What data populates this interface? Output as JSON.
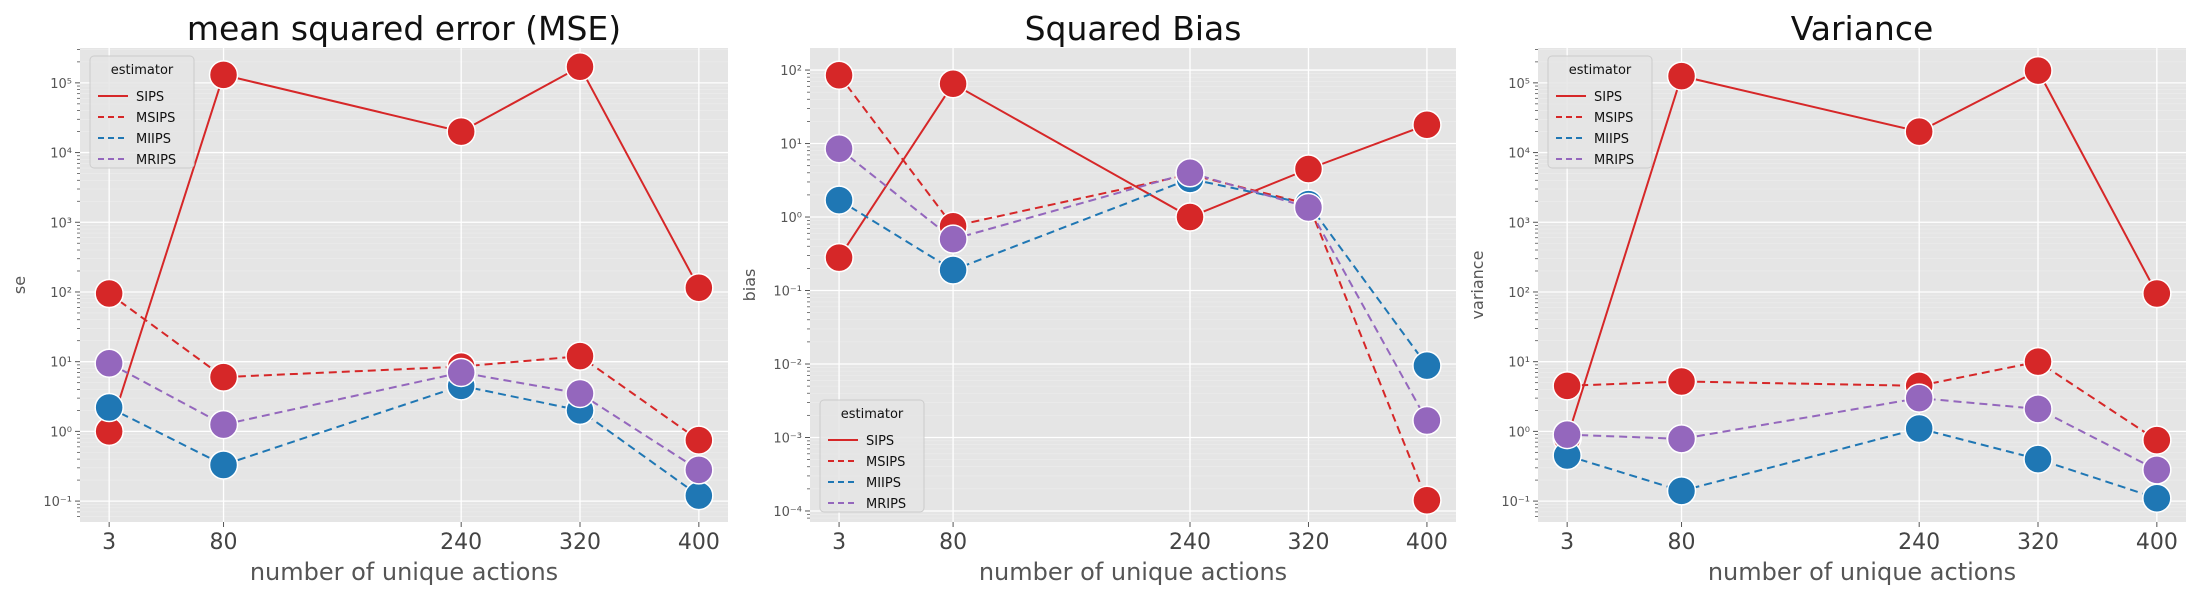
{
  "chart_data": [
    {
      "type": "line",
      "title": "mean squared error (MSE)",
      "xlabel": "number of unique actions",
      "ylabel": "se",
      "yscale": "log",
      "ylim_exp": [
        -1.3,
        5.5
      ],
      "y_tick_exponents": [
        -1,
        0,
        1,
        2,
        3,
        4,
        5
      ],
      "x": [
        3,
        80,
        240,
        320,
        400
      ],
      "grid": true,
      "legend": {
        "title": "estimator",
        "placement": "top-left"
      },
      "series": [
        {
          "name": "SIPS",
          "style": "solid",
          "color": "#d62728",
          "marker_color": "#d62728",
          "values": [
            1.0,
            130000,
            20000,
            170000,
            115
          ]
        },
        {
          "name": "MSIPS",
          "style": "dashed",
          "color": "#d62728",
          "marker_color": "#d62728",
          "values": [
            95,
            6.0,
            8.5,
            12,
            0.75
          ]
        },
        {
          "name": "MIIPS",
          "style": "dashed",
          "color": "#1f77b4",
          "marker_color": "#1f77b4",
          "values": [
            2.2,
            0.33,
            4.5,
            2.0,
            0.12
          ]
        },
        {
          "name": "MRIPS",
          "style": "dashed",
          "color": "#9467bd",
          "marker_color": "#9467bd",
          "values": [
            9.5,
            1.25,
            7.0,
            3.5,
            0.28
          ]
        }
      ]
    },
    {
      "type": "line",
      "title": "Squared Bias",
      "xlabel": "number of unique actions",
      "ylabel": "bias",
      "yscale": "log",
      "ylim_exp": [
        -4.15,
        2.3
      ],
      "y_tick_exponents": [
        -4,
        -3,
        -2,
        -1,
        0,
        1,
        2
      ],
      "x": [
        3,
        80,
        240,
        320,
        400
      ],
      "grid": true,
      "legend": {
        "title": "estimator",
        "placement": "bottom-left"
      },
      "series": [
        {
          "name": "SIPS",
          "style": "solid",
          "color": "#d62728",
          "marker_color": "#d62728",
          "values": [
            0.28,
            65,
            1.0,
            4.5,
            18
          ]
        },
        {
          "name": "MSIPS",
          "style": "dashed",
          "color": "#d62728",
          "marker_color": "#d62728",
          "values": [
            85,
            0.75,
            3.8,
            1.5,
            0.00014
          ]
        },
        {
          "name": "MIIPS",
          "style": "dashed",
          "color": "#1f77b4",
          "marker_color": "#1f77b4",
          "values": [
            1.7,
            0.19,
            3.3,
            1.5,
            0.0095
          ]
        },
        {
          "name": "MRIPS",
          "style": "dashed",
          "color": "#9467bd",
          "marker_color": "#9467bd",
          "values": [
            8.5,
            0.5,
            4.0,
            1.35,
            0.0017
          ]
        }
      ]
    },
    {
      "type": "line",
      "title": "Variance",
      "xlabel": "number of unique actions",
      "ylabel": "variance",
      "yscale": "log",
      "ylim_exp": [
        -1.3,
        5.5
      ],
      "y_tick_exponents": [
        -1,
        0,
        1,
        2,
        3,
        4,
        5
      ],
      "x": [
        3,
        80,
        240,
        320,
        400
      ],
      "grid": true,
      "legend": {
        "title": "estimator",
        "placement": "top-left"
      },
      "series": [
        {
          "name": "SIPS",
          "style": "solid",
          "color": "#d62728",
          "marker_color": "#d62728",
          "values": [
            0.8,
            125000,
            20000,
            150000,
            95
          ]
        },
        {
          "name": "MSIPS",
          "style": "dashed",
          "color": "#d62728",
          "marker_color": "#d62728",
          "values": [
            4.5,
            5.2,
            4.5,
            10,
            0.75
          ]
        },
        {
          "name": "MIIPS",
          "style": "dashed",
          "color": "#1f77b4",
          "marker_color": "#1f77b4",
          "values": [
            0.45,
            0.14,
            1.1,
            0.4,
            0.11
          ]
        },
        {
          "name": "MRIPS",
          "style": "dashed",
          "color": "#9467bd",
          "marker_color": "#9467bd",
          "values": [
            0.9,
            0.78,
            3.0,
            2.1,
            0.28
          ]
        }
      ]
    }
  ]
}
